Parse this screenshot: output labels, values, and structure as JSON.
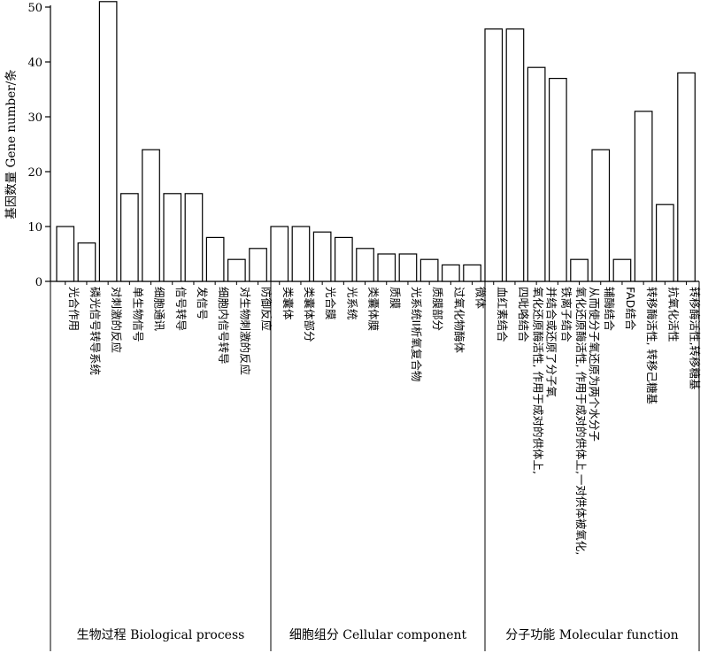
{
  "chart_data": {
    "type": "bar",
    "ylabel": "基因数量 Gene number/条",
    "ylim": [
      0,
      50
    ],
    "yticks": [
      0,
      10,
      20,
      30,
      40,
      50
    ],
    "groups": [
      {
        "label": "生物过程 Biological process",
        "categories": [
          [
            "光合作用"
          ],
          [
            "磷光信号转导系统"
          ],
          [
            "对刺激的反应"
          ],
          [
            "单生物信号"
          ],
          [
            "细胞通讯"
          ],
          [
            "信号转导"
          ],
          [
            "发信号"
          ],
          [
            "细胞内信号转导"
          ],
          [
            "对生物刺激的反应"
          ],
          [
            "防御反应"
          ]
        ],
        "values": [
          10,
          7,
          51,
          16,
          24,
          16,
          16,
          8,
          4,
          6
        ]
      },
      {
        "label": "细胞组分 Cellular component",
        "categories": [
          [
            "类囊体"
          ],
          [
            "类囊体部分"
          ],
          [
            "光合膜"
          ],
          [
            "光系统"
          ],
          [
            "类囊体膜"
          ],
          [
            "质膜"
          ],
          [
            "光系统II析氧复合物"
          ],
          [
            "质膜部分"
          ],
          [
            "过氧化物酶体"
          ],
          [
            "微体"
          ]
        ],
        "values": [
          10,
          10,
          9,
          8,
          6,
          5,
          5,
          4,
          3,
          3
        ]
      },
      {
        "label": "分子功能 Molecular function",
        "categories": [
          [
            "血红素结合"
          ],
          [
            "四吡咯结合"
          ],
          [
            "氧化还原酶活性, 作用于成对的供体上,",
            "并结合或还原了分子氧"
          ],
          [
            "铁离子结合"
          ],
          [
            "氧化还原酶活性, 作用于成对的供体上,一对供体被氧化,",
            "从而使分子氧还原为两个水分子"
          ],
          [
            "辅酶结合"
          ],
          [
            "FAD结合"
          ],
          [
            "转移酶活性, 转移己糖基"
          ],
          [
            "抗氧化活性"
          ],
          [
            "转移酶活性,转移糖基"
          ]
        ],
        "values": [
          46,
          46,
          39,
          37,
          4,
          24,
          4,
          31,
          14,
          38
        ]
      }
    ]
  }
}
